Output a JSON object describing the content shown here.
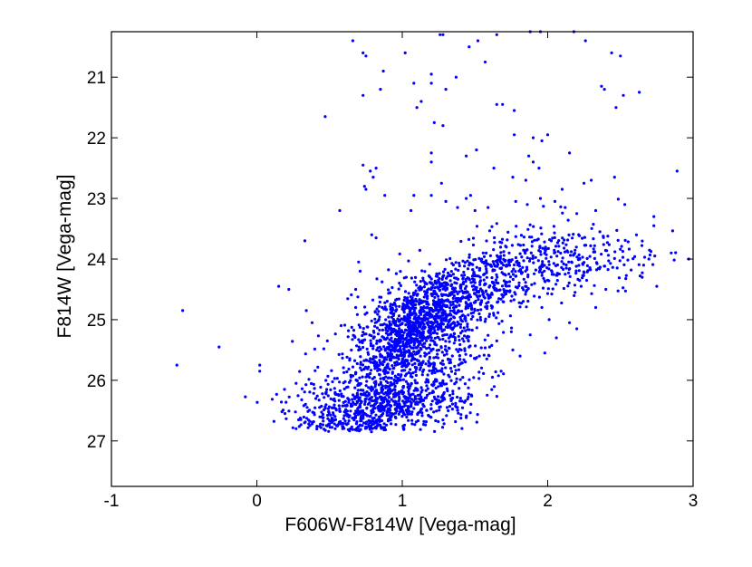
{
  "chart_data": {
    "type": "scatter",
    "title": "",
    "xlabel": "F606W-F814W [Vega-mag]",
    "ylabel": "F814W [Vega-mag]",
    "xlim": [
      -1,
      3
    ],
    "ylim": [
      27.75,
      20.25
    ],
    "y_inverted": true,
    "grid": false,
    "legend": "none",
    "marker_color": "#0000ff",
    "xticks": [
      -1,
      0,
      1,
      2,
      3
    ],
    "xtick_labels": [
      "-1",
      "0",
      "1",
      "2",
      "3"
    ],
    "yticks": [
      21,
      22,
      23,
      24,
      25,
      26,
      27
    ],
    "ytick_labels": [
      "21",
      "22",
      "23",
      "24",
      "25",
      "26",
      "27"
    ],
    "sparse_points": [
      [
        0.66,
        20.4
      ],
      [
        0.73,
        20.6
      ],
      [
        0.75,
        20.65
      ],
      [
        0.87,
        20.9
      ],
      [
        1.02,
        20.6
      ],
      [
        1.08,
        21.1
      ],
      [
        1.2,
        20.95
      ],
      [
        1.26,
        20.3
      ],
      [
        1.28,
        20.3
      ],
      [
        1.37,
        21.0
      ],
      [
        1.46,
        20.5
      ],
      [
        1.52,
        20.4
      ],
      [
        1.57,
        20.75
      ],
      [
        1.65,
        20.3
      ],
      [
        1.88,
        20.25
      ],
      [
        1.95,
        20.25
      ],
      [
        2.18,
        20.25
      ],
      [
        2.26,
        20.4
      ],
      [
        2.44,
        20.6
      ],
      [
        2.5,
        20.65
      ],
      [
        2.37,
        21.15
      ],
      [
        2.39,
        21.2
      ],
      [
        2.52,
        21.3
      ],
      [
        2.63,
        21.25
      ],
      [
        2.47,
        21.5
      ],
      [
        0.73,
        21.3
      ],
      [
        0.85,
        21.2
      ],
      [
        1.1,
        21.5
      ],
      [
        1.13,
        21.4
      ],
      [
        1.2,
        21.1
      ],
      [
        1.3,
        21.2
      ],
      [
        1.65,
        21.45
      ],
      [
        1.69,
        21.45
      ],
      [
        1.77,
        21.55
      ],
      [
        1.77,
        21.95
      ],
      [
        1.9,
        22.0
      ],
      [
        1.96,
        22.05
      ],
      [
        2.0,
        21.95
      ],
      [
        1.87,
        22.3
      ],
      [
        1.9,
        22.4
      ],
      [
        1.94,
        22.5
      ],
      [
        2.15,
        22.25
      ],
      [
        0.47,
        21.65
      ],
      [
        1.22,
        21.75
      ],
      [
        1.28,
        21.8
      ],
      [
        1.2,
        22.25
      ],
      [
        1.2,
        22.4
      ],
      [
        1.51,
        22.2
      ],
      [
        0.73,
        22.45
      ],
      [
        0.78,
        22.55
      ],
      [
        0.82,
        22.5
      ],
      [
        0.74,
        22.8
      ],
      [
        0.75,
        22.85
      ],
      [
        0.8,
        22.65
      ],
      [
        1.27,
        22.75
      ],
      [
        1.44,
        22.3
      ],
      [
        1.63,
        22.5
      ],
      [
        1.76,
        22.65
      ],
      [
        1.85,
        22.7
      ],
      [
        2.1,
        22.85
      ],
      [
        2.25,
        22.75
      ],
      [
        2.3,
        22.7
      ],
      [
        2.46,
        22.65
      ],
      [
        2.89,
        22.55
      ],
      [
        0.88,
        22.95
      ],
      [
        1.08,
        22.95
      ],
      [
        1.2,
        22.95
      ],
      [
        1.3,
        23.05
      ],
      [
        1.44,
        23.0
      ],
      [
        1.47,
        22.95
      ],
      [
        1.38,
        23.15
      ],
      [
        1.06,
        23.2
      ],
      [
        1.5,
        23.2
      ],
      [
        1.59,
        23.15
      ],
      [
        1.78,
        23.05
      ],
      [
        1.86,
        23.1
      ],
      [
        1.95,
        23.0
      ],
      [
        2.05,
        23.05
      ],
      [
        2.12,
        23.15
      ],
      [
        2.2,
        23.25
      ],
      [
        2.33,
        23.2
      ],
      [
        2.53,
        23.1
      ],
      [
        2.73,
        23.3
      ],
      [
        2.73,
        23.45
      ],
      [
        0.57,
        23.2
      ],
      [
        0.33,
        23.7
      ],
      [
        0.79,
        23.6
      ],
      [
        0.82,
        23.65
      ],
      [
        0.7,
        24.05
      ],
      [
        0.15,
        24.45
      ],
      [
        0.22,
        24.5
      ],
      [
        0.34,
        24.85
      ],
      [
        0.38,
        25.05
      ],
      [
        -0.51,
        24.85
      ],
      [
        -0.55,
        25.75
      ],
      [
        -0.26,
        25.45
      ],
      [
        0.02,
        25.75
      ],
      [
        0.02,
        25.85
      ],
      [
        0.27,
        26.05
      ],
      [
        0.19,
        26.15
      ],
      [
        0.71,
        24.2
      ],
      [
        0.68,
        24.5
      ],
      [
        0.68,
        24.8
      ],
      [
        1.46,
        24.1
      ],
      [
        1.55,
        24.05
      ],
      [
        2.0,
        24.35
      ],
      [
        2.12,
        24.25
      ],
      [
        2.23,
        24.45
      ],
      [
        2.4,
        24.5
      ],
      [
        2.66,
        24.1
      ],
      [
        2.65,
        24.3
      ],
      [
        2.85,
        23.9
      ],
      [
        2.75,
        24.45
      ],
      [
        2.97,
        24.0
      ],
      [
        2.33,
        24.8
      ],
      [
        2.15,
        25.05
      ],
      [
        2.2,
        25.15
      ],
      [
        1.96,
        24.8
      ],
      [
        2.01,
        25.0
      ],
      [
        2.06,
        25.3
      ],
      [
        1.98,
        25.55
      ],
      [
        1.88,
        25.25
      ],
      [
        1.75,
        25.2
      ],
      [
        1.65,
        25.35
      ],
      [
        1.81,
        25.6
      ],
      [
        1.76,
        25.5
      ],
      [
        1.68,
        25.85
      ],
      [
        1.62,
        25.95
      ],
      [
        1.53,
        25.6
      ],
      [
        1.46,
        25.45
      ]
    ],
    "dense_clusters": [
      {
        "n": 650,
        "cx": 1.08,
        "cy": 25.05,
        "sx": 0.17,
        "sy": 0.34,
        "rho": -0.45
      },
      {
        "n": 700,
        "cx": 0.98,
        "cy": 25.75,
        "sx": 0.26,
        "sy": 0.48,
        "rho": -0.3
      },
      {
        "n": 550,
        "cx": 0.85,
        "cy": 26.45,
        "sx": 0.28,
        "sy": 0.22,
        "rho": -0.2
      },
      {
        "n": 260,
        "cx": 1.3,
        "cy": 24.7,
        "sx": 0.17,
        "sy": 0.28,
        "rho": 0.0
      },
      {
        "n": 260,
        "cx": 1.55,
        "cy": 24.35,
        "sx": 0.18,
        "sy": 0.3,
        "rho": 0.0
      },
      {
        "n": 220,
        "cx": 1.95,
        "cy": 24.05,
        "sx": 0.22,
        "sy": 0.3,
        "rho": 0.0
      },
      {
        "n": 110,
        "cx": 2.35,
        "cy": 23.95,
        "sx": 0.22,
        "sy": 0.3,
        "rho": 0.0
      },
      {
        "n": 80,
        "cx": 1.35,
        "cy": 25.55,
        "sx": 0.2,
        "sy": 0.42,
        "rho": 0.0
      },
      {
        "n": 90,
        "cx": 0.6,
        "cy": 26.7,
        "sx": 0.2,
        "sy": 0.1,
        "rho": 0.0
      }
    ]
  }
}
